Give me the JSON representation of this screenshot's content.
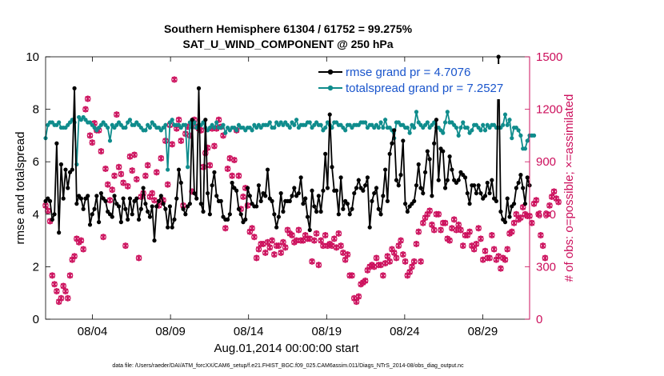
{
  "colors": {
    "rmse": "#000000",
    "spread": "#0f8c8c",
    "obs": "#cc0f5c",
    "axis": "#000000"
  },
  "chart_data": {
    "type": "line",
    "title": [
      "Southern Hemisphere 61304 / 61752 = 99.275%",
      "SAT_U_WIND_COMPONENT @ 250 hPa"
    ],
    "xlabel": "Aug.01,2014 00:00:00 start",
    "ylabel_left": "rmse and totalspread",
    "ylabel_right": "# of obs: o=possible; ×=assimilated",
    "x_ticks": [
      "08/04",
      "08/09",
      "08/14",
      "08/19",
      "08/24",
      "08/29"
    ],
    "x_tick_days": [
      4,
      9,
      14,
      19,
      24,
      29
    ],
    "xlim_days": [
      1,
      32
    ],
    "ylim_left": [
      0,
      10
    ],
    "y_ticks_left": [
      "0",
      "2",
      "4",
      "6",
      "8",
      "10"
    ],
    "ylim_right": [
      0,
      1500
    ],
    "y_ticks_right": [
      "0",
      "300",
      "600",
      "900",
      "1200",
      "1500"
    ],
    "legend_position": "top-right",
    "footer": "data file: /Users/raeder/DAI/ATM_forcXX/CAM6_setup/f.e21.FHIST_BGC.f09_025.CAM6assim.011/Diags_NTrS_2014-08/obs_diag_output.nc",
    "series": [
      {
        "name": "rmse grand pr = 4.7076",
        "values": [
          4.5,
          4.6,
          4.5,
          3.8,
          4.0,
          6.7,
          3.3,
          5.9,
          4.6,
          5.7,
          5.0,
          5.6,
          5.7,
          8.8,
          4.4,
          4.7,
          4.6,
          4.2,
          4.6,
          4.7,
          3.6,
          4.0,
          4.2,
          4.7,
          3.7,
          4.8,
          4.6,
          4.5,
          4.1,
          4.0,
          3.9,
          4.7,
          4.4,
          4.3,
          3.7,
          4.6,
          4.2,
          3.8,
          4.6,
          4.0,
          4.5,
          4.6,
          3.8,
          4.2,
          5.0,
          4.4,
          4.1,
          3.9,
          4.3,
          3.0,
          4.3,
          4.5,
          4.7,
          4.4,
          4.2,
          3.5,
          4.3,
          3.5,
          3.8,
          4.6,
          5.7,
          5.2,
          4.2,
          4.0,
          4.3,
          4.4,
          7.6,
          4.8,
          4.6,
          8.8,
          4.4,
          4.1,
          7.6,
          4.8,
          4.0,
          5.1,
          5.6,
          4.7,
          4.5,
          4.5,
          3.9,
          3.8,
          3.8,
          4.0,
          5.2,
          5.0,
          4.9,
          4.2,
          4.0,
          3.7,
          3.8,
          5.0,
          4.7,
          4.4,
          4.3,
          4.3,
          5.1,
          4.5,
          4.8,
          4.7,
          5.7,
          4.6,
          4.5,
          4.0,
          3.5,
          3.9,
          4.8,
          4.1,
          4.5,
          4.5,
          4.5,
          4.7,
          5.0,
          4.7,
          4.8,
          5.4,
          4.4,
          4.6,
          3.9,
          3.4,
          4.9,
          4.3,
          4.1,
          4.7,
          4.1,
          4.9,
          6.3,
          5.0,
          7.8,
          5.8,
          4.9,
          4.9,
          4.0,
          5.4,
          4.2,
          4.5,
          4.4,
          4.0,
          4.2,
          4.8,
          5.0,
          5.3,
          5.0,
          4.9,
          5.1,
          5.4,
          3.5,
          4.5,
          4.8,
          5.0,
          4.2,
          4.0,
          4.7,
          5.7,
          4.5,
          6.3,
          6.7,
          7.2,
          5.3,
          5.1,
          5.5,
          6.8,
          4.4,
          4.1,
          4.3,
          4.4,
          4.5,
          5.1,
          5.9,
          5.0,
          4.8,
          5.6,
          6.4,
          6.1,
          4.7,
          6.7,
          7.6,
          5.3,
          6.5,
          6.4,
          5.0,
          5.3,
          6.2,
          5.7,
          5.3,
          5.2,
          5.3,
          5.6,
          5.5,
          5.4,
          4.8,
          4.4,
          5.1,
          5.1,
          4.8,
          5.1,
          4.8,
          4.6,
          4.7,
          5.2,
          4.8,
          5.3,
          4.6,
          4.5,
          10.0,
          4.1,
          3.8,
          3.7,
          4.6,
          3.9,
          4.3,
          4.4,
          5.0,
          5.2,
          5.5,
          5.0,
          4.4,
          5.4,
          5.1
        ]
      },
      {
        "name": "totalspread grand pr = 7.2527",
        "values": [
          6.9,
          7.4,
          7.5,
          7.5,
          7.4,
          7.4,
          7.5,
          7.3,
          7.3,
          7.3,
          7.4,
          7.5,
          7.6,
          7.5,
          5.9,
          7.7,
          7.6,
          7.7,
          7.6,
          7.5,
          7.5,
          7.4,
          7.3,
          7.2,
          7.3,
          7.4,
          7.5,
          7.4,
          7.3,
          6.8,
          7.4,
          7.3,
          7.4,
          7.5,
          7.4,
          7.3,
          7.3,
          7.5,
          7.6,
          7.4,
          7.4,
          7.5,
          7.4,
          7.3,
          7.2,
          7.2,
          7.4,
          7.3,
          7.5,
          7.4,
          7.3,
          7.3,
          7.2,
          7.3,
          7.4,
          5.7,
          7.5,
          7.6,
          7.4,
          7.4,
          7.4,
          7.3,
          7.4,
          7.4,
          5.8,
          7.5,
          7.3,
          7.5,
          7.3,
          7.4,
          7.4,
          7.5,
          7.3,
          7.2,
          7.3,
          7.4,
          7.3,
          7.5,
          7.3,
          7.3,
          7.4,
          7.1,
          7.3,
          7.2,
          7.3,
          7.3,
          7.2,
          7.4,
          7.3,
          7.3,
          7.2,
          7.3,
          7.3,
          7.2,
          7.4,
          7.3,
          7.4,
          7.3,
          7.4,
          7.4,
          7.4,
          7.5,
          7.3,
          7.3,
          7.5,
          7.4,
          7.5,
          7.4,
          7.5,
          7.4,
          7.3,
          7.5,
          7.4,
          7.6,
          7.3,
          7.4,
          7.4,
          7.4,
          7.5,
          7.5,
          7.3,
          7.4,
          7.5,
          7.4,
          7.4,
          7.2,
          7.3,
          7.5,
          7.4,
          7.3,
          7.5,
          7.5,
          7.4,
          7.4,
          7.3,
          7.2,
          7.4,
          7.4,
          7.3,
          7.4,
          7.4,
          7.4,
          7.5,
          7.5,
          7.5,
          7.3,
          7.4,
          7.4,
          7.3,
          7.4,
          7.3,
          7.5,
          7.3,
          7.6,
          7.3,
          7.3,
          7.2,
          6.9,
          7.5,
          7.5,
          7.4,
          7.4,
          7.3,
          7.3,
          7.1,
          7.4,
          7.3,
          7.9,
          7.5,
          7.4,
          7.3,
          7.4,
          7.5,
          7.3,
          7.4,
          7.5,
          7.3,
          7.3,
          7.2,
          7.1,
          7.5,
          7.9,
          7.5,
          7.5,
          7.4,
          7.3,
          7.0,
          7.3,
          7.5,
          7.3,
          7.3,
          7.1,
          7.2,
          7.4,
          7.4,
          7.3,
          7.2,
          7.4,
          7.2,
          7.4,
          7.3,
          7.4,
          7.4,
          7.3,
          7.3,
          7.3,
          7.4,
          7.8,
          7.4,
          7.6,
          6.9,
          7.3,
          7.3,
          7.2,
          7.0,
          6.5,
          6.5,
          6.8,
          7.0,
          7.0,
          7.0
        ]
      },
      {
        "name": "possible",
        "values": [
          650,
          620,
          560,
          250,
          200,
          160,
          100,
          120,
          190,
          160,
          120,
          250,
          340,
          360,
          460,
          440,
          450,
          400,
          1200,
          1260,
          1050,
          1010,
          1120,
          1080,
          1080,
          960,
          470,
          860,
          770,
          680,
          740,
          820,
          1170,
          870,
          830,
          780,
          420,
          760,
          930,
          850,
          940,
          800,
          350,
          700,
          720,
          820,
          880,
          700,
          720,
          680,
          840,
          650,
          920,
          680,
          1020,
          770,
          1110,
          1000,
          1370,
          1090,
          1140,
          1020,
          650,
          1060,
          1100,
          1050,
          730,
          1140,
          1100,
          1090,
          1080,
          870,
          950,
          980,
          880,
          1090,
          990,
          1090,
          1140,
          1100,
          1050,
          520,
          860,
          920,
          820,
          910,
          1080,
          820,
          630,
          700,
          750,
          650,
          500,
          520,
          470,
          350,
          400,
          430,
          430,
          380,
          440,
          410,
          450,
          370,
          420,
          420,
          380,
          440,
          410,
          510,
          490,
          480,
          440,
          450,
          510,
          450,
          450,
          480,
          460,
          460,
          330,
          450,
          490,
          310,
          450,
          420,
          480,
          420,
          430,
          420,
          460,
          410,
          490,
          420,
          380,
          340,
          370,
          250,
          250,
          120,
          100,
          130,
          200,
          210,
          220,
          280,
          300,
          310,
          300,
          350,
          310,
          310,
          250,
          320,
          360,
          330,
          400,
          380,
          350,
          420,
          450,
          370,
          330,
          250,
          270,
          300,
          330,
          430,
          500,
          330,
          550,
          580,
          600,
          620,
          540,
          510,
          600,
          600,
          510,
          550,
          550,
          460,
          450,
          520,
          570,
          510,
          540,
          510,
          420,
          480,
          480,
          500,
          420,
          400,
          430,
          520,
          460,
          340,
          390,
          350,
          350,
          480,
          400,
          340,
          360,
          290,
          350,
          340,
          400,
          490,
          500,
          550,
          600,
          570,
          580,
          640,
          600,
          590,
          590,
          550,
          660,
          680,
          600,
          480,
          420,
          350,
          600,
          650,
          700,
          730,
          690,
          670
        ]
      },
      {
        "name": "assimilated",
        "values": [
          650,
          620,
          560,
          250,
          200,
          160,
          100,
          120,
          190,
          160,
          120,
          250,
          340,
          360,
          460,
          440,
          450,
          400,
          1200,
          1260,
          1050,
          1010,
          1120,
          1080,
          1080,
          960,
          470,
          860,
          770,
          680,
          740,
          820,
          1170,
          870,
          830,
          780,
          420,
          760,
          930,
          850,
          940,
          800,
          350,
          700,
          720,
          820,
          880,
          700,
          720,
          680,
          840,
          650,
          920,
          680,
          1020,
          770,
          1110,
          1000,
          1370,
          1090,
          1140,
          1020,
          650,
          1060,
          1100,
          1050,
          730,
          1140,
          1100,
          1090,
          1080,
          870,
          950,
          980,
          880,
          1090,
          990,
          1090,
          1140,
          1100,
          1050,
          520,
          860,
          920,
          820,
          910,
          1080,
          820,
          630,
          700,
          750,
          650,
          500,
          520,
          470,
          350,
          400,
          430,
          430,
          380,
          440,
          410,
          450,
          370,
          420,
          420,
          380,
          440,
          410,
          510,
          490,
          480,
          440,
          450,
          510,
          450,
          450,
          480,
          460,
          460,
          330,
          450,
          490,
          310,
          450,
          420,
          480,
          420,
          430,
          420,
          460,
          410,
          490,
          420,
          380,
          340,
          370,
          250,
          250,
          120,
          100,
          130,
          200,
          210,
          220,
          280,
          300,
          310,
          300,
          350,
          310,
          310,
          250,
          320,
          360,
          330,
          400,
          380,
          350,
          420,
          450,
          370,
          330,
          250,
          270,
          300,
          330,
          430,
          500,
          330,
          550,
          580,
          600,
          620,
          540,
          510,
          600,
          600,
          510,
          550,
          550,
          460,
          450,
          520,
          570,
          510,
          540,
          510,
          420,
          480,
          480,
          500,
          420,
          400,
          430,
          520,
          460,
          340,
          390,
          350,
          350,
          480,
          400,
          340,
          360,
          290,
          350,
          340,
          400,
          490,
          500,
          550,
          600,
          570,
          580,
          640,
          600,
          590,
          590,
          550,
          660,
          680,
          600,
          480,
          420,
          350,
          600,
          650,
          700,
          730,
          690,
          670
        ]
      }
    ]
  }
}
